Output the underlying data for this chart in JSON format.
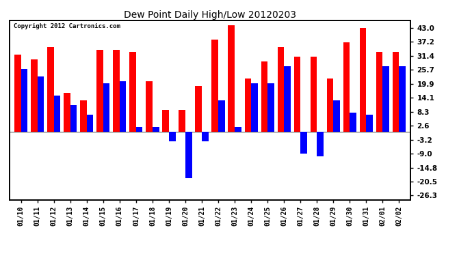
{
  "title": "Dew Point Daily High/Low 20120203",
  "copyright": "Copyright 2012 Cartronics.com",
  "dates": [
    "01/10",
    "01/11",
    "01/12",
    "01/13",
    "01/14",
    "01/15",
    "01/16",
    "01/17",
    "01/18",
    "01/19",
    "01/20",
    "01/21",
    "01/22",
    "01/23",
    "01/24",
    "01/25",
    "01/26",
    "01/27",
    "01/28",
    "01/29",
    "01/30",
    "01/31",
    "02/01",
    "02/02"
  ],
  "highs": [
    32,
    30,
    35,
    16,
    13,
    34,
    34,
    33,
    21,
    9,
    9,
    19,
    38,
    44,
    22,
    29,
    35,
    31,
    31,
    22,
    37,
    43,
    33,
    33
  ],
  "lows": [
    26,
    23,
    15,
    11,
    7,
    20,
    21,
    2,
    2,
    -4,
    -19,
    -4,
    13,
    2,
    20,
    20,
    27,
    -9,
    -10,
    13,
    8,
    7,
    27,
    27
  ],
  "high_color": "#ff0000",
  "low_color": "#0000ff",
  "background_color": "#ffffff",
  "grid_color": "#aaaaaa",
  "yticks": [
    43.0,
    37.2,
    31.4,
    25.7,
    19.9,
    14.1,
    8.3,
    2.6,
    -3.2,
    -9.0,
    -14.8,
    -20.5,
    -26.3
  ],
  "ylim": [
    -28,
    46
  ],
  "bar_width": 0.4,
  "figwidth": 6.9,
  "figheight": 3.75,
  "dpi": 100
}
